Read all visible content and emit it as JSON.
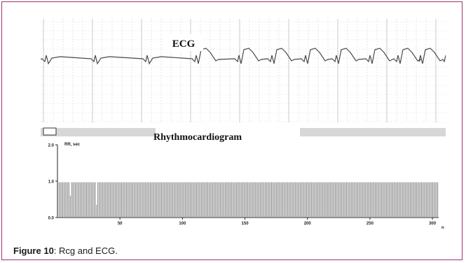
{
  "ecg": {
    "title": "ECG"
  },
  "rhythmocardiogram": {
    "title": "Rhythmocardiogram"
  },
  "chart_data": {
    "type": "bar",
    "title": "Rhythmocardiogram",
    "ylabel": "RR, sec",
    "y_ticks": [
      "2.0",
      "1.0",
      "0.0"
    ],
    "x_ticks": [
      "50",
      "100",
      "150",
      "200",
      "250",
      "300"
    ],
    "x_unit": "n",
    "ylim": [
      0,
      2
    ],
    "xlim": [
      0,
      305
    ],
    "grid": false,
    "values": [
      0.97,
      0.97,
      0.97,
      0.97,
      0.97,
      0.97,
      0.97,
      0.97,
      0.97,
      0.97,
      0.6,
      0.97,
      0.97,
      0.97,
      0.97,
      0.97,
      0.97,
      0.97,
      0.97,
      0.97,
      0.97,
      0.97,
      0.97,
      0.97,
      0.97,
      0.97,
      0.97,
      0.97,
      0.97,
      0.97,
      0.97,
      0.35,
      0.97,
      0.97,
      0.97,
      0.97,
      0.97,
      0.97,
      0.97,
      0.97,
      0.97,
      0.97,
      0.97,
      0.97,
      0.97,
      0.97,
      0.97,
      0.97,
      0.97,
      0.97,
      0.97,
      0.97,
      0.97,
      0.97,
      0.97,
      0.97,
      0.97,
      0.97,
      0.97,
      0.97,
      0.97,
      0.97,
      0.97,
      0.97,
      0.97,
      0.97,
      0.97,
      0.97,
      0.97,
      0.97,
      0.97,
      0.97,
      0.97,
      0.97,
      0.97,
      0.97,
      0.97,
      0.97,
      0.97,
      0.97,
      0.97,
      0.97,
      0.97,
      0.97,
      0.97,
      0.97,
      0.97,
      0.97,
      0.97,
      0.97,
      0.97,
      0.97,
      0.97,
      0.97,
      0.97,
      0.97,
      0.97,
      0.97,
      0.97,
      0.97,
      0.97,
      0.97,
      0.97,
      0.97,
      0.97,
      0.97,
      0.97,
      0.97,
      0.97,
      0.97,
      0.97,
      0.97,
      0.97,
      0.97,
      0.97,
      0.97,
      0.97,
      0.97,
      0.97,
      0.97,
      0.97,
      0.97,
      0.97,
      0.97,
      0.97,
      0.97,
      0.97,
      0.97,
      0.97,
      0.97,
      0.97,
      0.97,
      0.97,
      0.97,
      0.97,
      0.97,
      0.97,
      0.97,
      0.97,
      0.97,
      0.97,
      0.97,
      0.97,
      0.97,
      0.97,
      0.97,
      0.97,
      0.97,
      0.97,
      0.97,
      0.97,
      0.97,
      0.97,
      0.97,
      0.97,
      0.97,
      0.97,
      0.97,
      0.97,
      0.97,
      0.97,
      0.97,
      0.97,
      0.97,
      0.97,
      0.97,
      0.97,
      0.97,
      0.97,
      0.97,
      0.97,
      0.97,
      0.97,
      0.97,
      0.97,
      0.97,
      0.97,
      0.97,
      0.97,
      0.97,
      0.97,
      0.97,
      0.97,
      0.97,
      0.97,
      0.97,
      0.97,
      0.97,
      0.97,
      0.97,
      0.97,
      0.97,
      0.97,
      0.97,
      0.97,
      0.97,
      0.97,
      0.97,
      0.97,
      0.97,
      0.97,
      0.97,
      0.97,
      0.97,
      0.97,
      0.97,
      0.97,
      0.97,
      0.97,
      0.97,
      0.97,
      0.97,
      0.97,
      0.97,
      0.97,
      0.97,
      0.97,
      0.97,
      0.97,
      0.97,
      0.97,
      0.97,
      0.97,
      0.97,
      0.97,
      0.97,
      0.97,
      0.97,
      0.97,
      0.97,
      0.97,
      0.97,
      0.97,
      0.97,
      0.97,
      0.97,
      0.97,
      0.97,
      0.97,
      0.97,
      0.97,
      0.97,
      0.97,
      0.97,
      0.97,
      0.97,
      0.97,
      0.97,
      0.97,
      0.97,
      0.97,
      0.97,
      0.97,
      0.97,
      0.97,
      0.97,
      0.97,
      0.97,
      0.97,
      0.97,
      0.97,
      0.97,
      0.97,
      0.97,
      0.97,
      0.97,
      0.97,
      0.97,
      0.97,
      0.97,
      0.97,
      0.97,
      0.97,
      0.97,
      0.97,
      0.97,
      0.97,
      0.97,
      0.97,
      0.97,
      0.97,
      0.97,
      0.97,
      0.97,
      0.97,
      0.97,
      0.97,
      0.97,
      0.97,
      0.97,
      0.97,
      0.97,
      0.97,
      0.97,
      0.97,
      0.97,
      0.97,
      0.97,
      0.97,
      0.97,
      0.97,
      0.97,
      0.97,
      0.97,
      0.97
    ]
  },
  "caption": {
    "label": "Figure 10",
    "text": ": Rcg and ECG."
  },
  "colors": {
    "border": "#a3306c",
    "bars": "#8a8a8a",
    "grid": "#c8c8c8",
    "trace": "#4a4a4a"
  }
}
